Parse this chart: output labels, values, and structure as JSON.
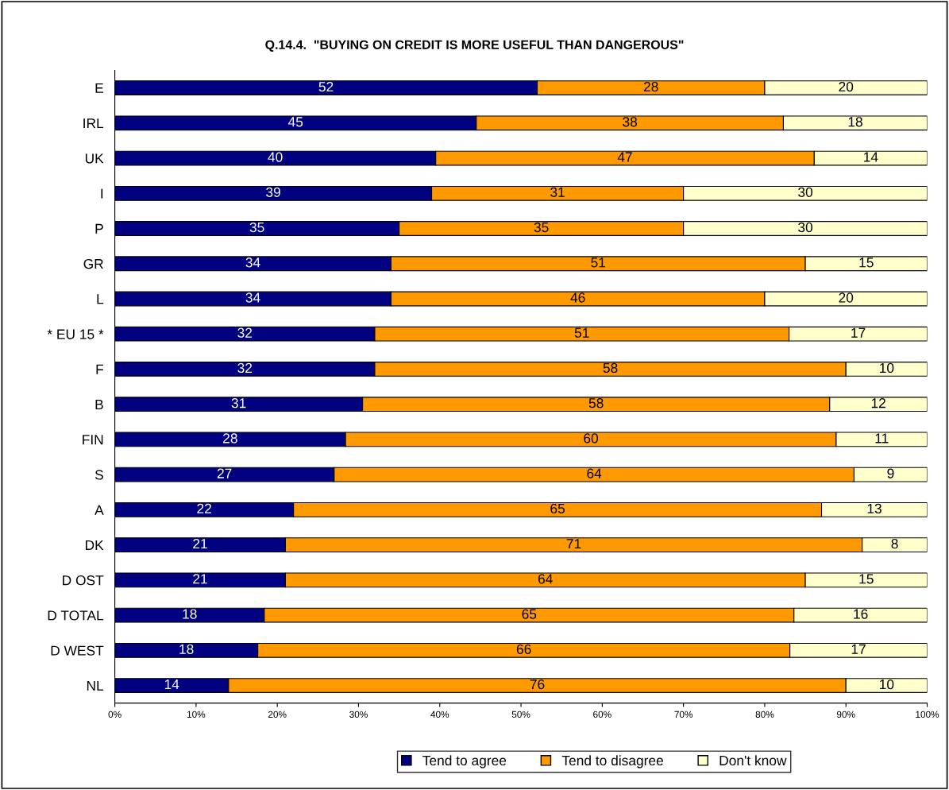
{
  "chart_data": {
    "type": "bar",
    "orientation": "horizontal",
    "stacked": true,
    "title": "Q.14.4.  \"BUYING ON CREDIT IS MORE USEFUL THAN DANGEROUS\"",
    "categories": [
      "E",
      "IRL",
      "UK",
      "I",
      "P",
      "GR",
      "L",
      "* EU 15 *",
      "F",
      "B",
      "FIN",
      "S",
      "A",
      "DK",
      "D OST",
      "D TOTAL",
      "D WEST",
      "NL"
    ],
    "series": [
      {
        "name": "Tend to agree",
        "color": "#000080",
        "values": [
          52,
          44.5,
          39.5,
          39,
          35,
          34,
          34,
          32,
          32,
          30.5,
          28.4,
          27,
          22,
          21,
          21,
          18.4,
          17.6,
          14
        ],
        "value_labels": [
          "52",
          "45",
          "40",
          "39",
          "35",
          "34",
          "34",
          "32",
          "32",
          "31",
          "28",
          "27",
          "22",
          "21",
          "21",
          "18",
          "18",
          "14"
        ]
      },
      {
        "name": "Tend to disagree",
        "color": "#ff9900",
        "values": [
          28,
          37.8,
          46.6,
          31,
          35,
          51,
          46,
          51,
          58,
          57.5,
          60.4,
          64,
          65,
          71,
          64,
          65.2,
          65.5,
          76
        ],
        "value_labels": [
          "28",
          "38",
          "47",
          "31",
          "35",
          "51",
          "46",
          "51",
          "58",
          "58",
          "60",
          "64",
          "65",
          "71",
          "64",
          "65",
          "66",
          "76"
        ]
      },
      {
        "name": "Don't know",
        "color": "#ffffcc",
        "values": [
          20,
          17.7,
          13.9,
          30,
          30,
          15,
          20,
          17,
          10,
          12,
          11.2,
          9,
          13,
          8,
          15,
          16.4,
          16.9,
          10
        ],
        "value_labels": [
          "20",
          "18",
          "14",
          "30",
          "30",
          "15",
          "20",
          "17",
          "10",
          "12",
          "11",
          "9",
          "13",
          "8",
          "15",
          "16",
          "17",
          "10"
        ]
      }
    ],
    "xlim": [
      0,
      100
    ],
    "xticks": [
      {
        "value": 0,
        "label": "0%"
      },
      {
        "value": 10,
        "label": "10%"
      },
      {
        "value": 20,
        "label": "20%"
      },
      {
        "value": 30,
        "label": "30%"
      },
      {
        "value": 40,
        "label": "40%"
      },
      {
        "value": 50,
        "label": "50%"
      },
      {
        "value": 60,
        "label": "60%"
      },
      {
        "value": 70,
        "label": "70%"
      },
      {
        "value": 80,
        "label": "80%"
      },
      {
        "value": 90,
        "label": "90%"
      },
      {
        "value": 100,
        "label": "100%"
      }
    ],
    "legend": "bottom",
    "grid": false
  }
}
